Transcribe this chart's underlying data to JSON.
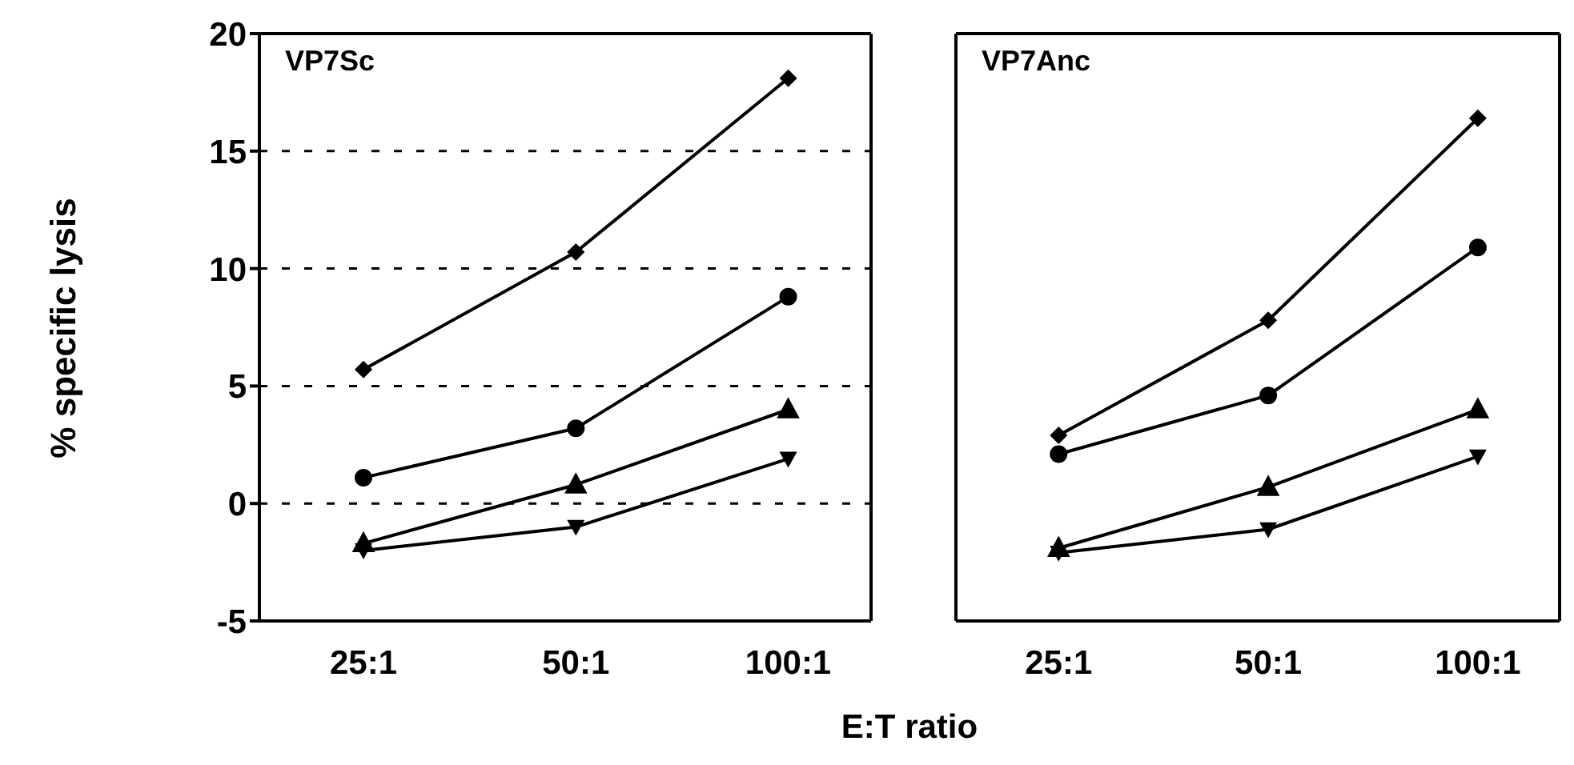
{
  "chart_data": [
    {
      "type": "line",
      "title": "VP7Sc",
      "ylabel": "% specific lysis",
      "xlabel": "E:T ratio",
      "categories": [
        "25:1",
        "50:1",
        "100:1"
      ],
      "ylim": [
        -5,
        20
      ],
      "yticks": [
        -5,
        0,
        5,
        10,
        15,
        20
      ],
      "grid": "y",
      "series": [
        {
          "color": "#000000",
          "marker": "diamond",
          "values": [
            5.7,
            10.7,
            18.1
          ]
        },
        {
          "color": "#000000",
          "marker": "circle",
          "values": [
            1.1,
            3.2,
            8.8
          ]
        },
        {
          "color": "#000000",
          "marker": "triangle",
          "values": [
            -1.7,
            0.8,
            4.0
          ]
        },
        {
          "color": "#000000",
          "marker": "triangle-down",
          "values": [
            -2.0,
            -1.0,
            1.9
          ]
        }
      ]
    },
    {
      "type": "line",
      "title": "VP7Anc",
      "categories": [
        "25:1",
        "50:1",
        "100:1"
      ],
      "ylim": [
        -5,
        20
      ],
      "yticks": [
        -5,
        0,
        5,
        10,
        15,
        20
      ],
      "grid": "y",
      "tick_labels": "x",
      "series": [
        {
          "color": "#000000",
          "marker": "diamond",
          "values": [
            2.9,
            7.8,
            16.4
          ]
        },
        {
          "color": "#000000",
          "marker": "circle",
          "values": [
            2.1,
            4.6,
            10.9
          ]
        },
        {
          "color": "#000000",
          "marker": "triangle",
          "values": [
            -1.9,
            0.7,
            4.0
          ]
        },
        {
          "color": "#000000",
          "marker": "triangle-down",
          "values": [
            -2.1,
            -1.1,
            2.0
          ]
        }
      ]
    }
  ]
}
